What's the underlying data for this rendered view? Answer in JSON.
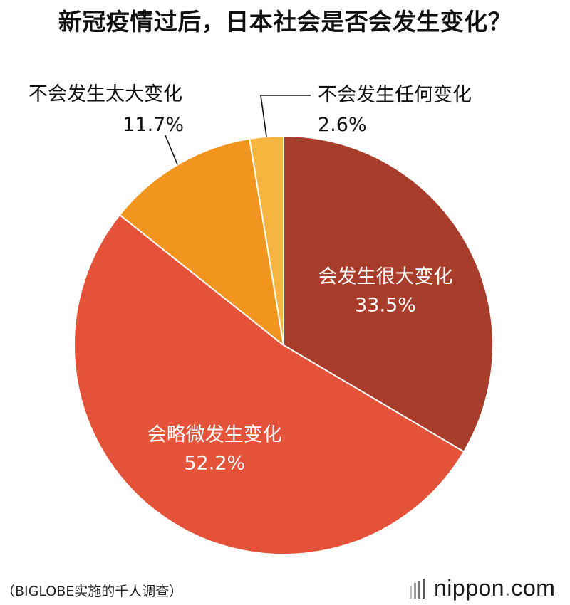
{
  "title": "新冠疫情过后，日本社会是否会发生变化？",
  "source": "（BIGLOBE实施的千人调查）",
  "logo": {
    "brand": "nippon",
    "dot": ".",
    "tld": "com"
  },
  "colors": {
    "large_change": "#A93D2C",
    "slight_change": "#E4523A",
    "not_much_change": "#F2951E",
    "no_change": "#F6B53F"
  },
  "chart_data": {
    "type": "pie",
    "start": "12 o'clock",
    "direction": "clockwise",
    "slices": [
      {
        "label": "会发生很大变化",
        "value": 33.5,
        "value_label": "33.5%",
        "color": "#A93D2C",
        "label_placement": "inside"
      },
      {
        "label": "会略微发生变化",
        "value": 52.2,
        "value_label": "52.2%",
        "color": "#E4523A",
        "label_placement": "inside"
      },
      {
        "label": "不会发生太大变化",
        "value": 11.7,
        "value_label": "11.7%",
        "color": "#F2951E",
        "label_placement": "outside-left"
      },
      {
        "label": "不会发生任何变化",
        "value": 2.6,
        "value_label": "2.6%",
        "color": "#F6B53F",
        "label_placement": "outside-right"
      }
    ]
  }
}
